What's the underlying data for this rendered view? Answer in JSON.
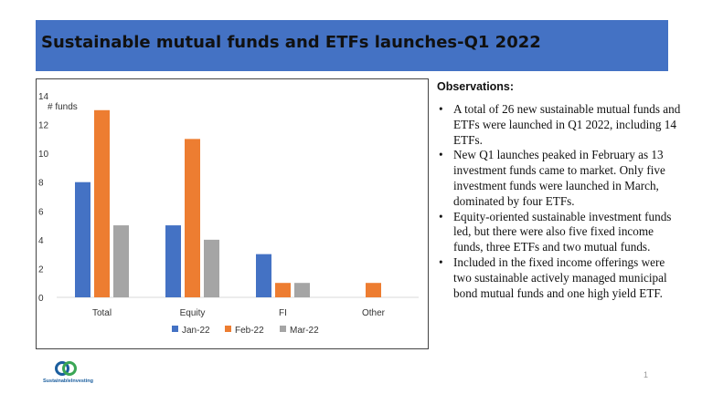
{
  "header": {
    "title": "Sustainable mutual funds and ETFs launches-Q1 2022"
  },
  "colors": {
    "title_bar": "#4472c4",
    "jan": "#4472c4",
    "feb": "#ed7d31",
    "mar": "#a5a5a5"
  },
  "chart_data": {
    "type": "bar",
    "ylabel": "# funds",
    "ylim": [
      0,
      14
    ],
    "yticks": [
      "0",
      "2",
      "4",
      "6",
      "8",
      "10",
      "12",
      "14"
    ],
    "categories": [
      "Total",
      "Equity",
      "FI",
      "Other"
    ],
    "series": [
      {
        "name": "Jan-22",
        "color": "#4472c4",
        "values": [
          8,
          5,
          3,
          0
        ]
      },
      {
        "name": "Feb-22",
        "color": "#ed7d31",
        "values": [
          13,
          11,
          1,
          1
        ]
      },
      {
        "name": "Mar-22",
        "color": "#a5a5a5",
        "values": [
          5,
          4,
          1,
          0
        ]
      }
    ],
    "grid": false,
    "legend": "bottom"
  },
  "observations": {
    "title": "Observations:",
    "bullet": "•",
    "items": [
      "A total of 26 new sustainable mutual funds and ETFs were launched in Q1 2022, including 14 ETFs.",
      "New Q1 launches peaked in February as 13 investment funds came to market. Only five investment funds were launched in March, dominated by four ETFs.",
      "Equity-oriented sustainable investment funds led, but there were also five fixed income funds, three ETFs and two mutual funds.",
      "Included in the fixed income offerings were two sustainable actively managed municipal bond mutual funds and one high yield ETF."
    ]
  },
  "logo": {
    "text": "SustainableInvesting"
  },
  "footer": {
    "page_number": "1"
  }
}
